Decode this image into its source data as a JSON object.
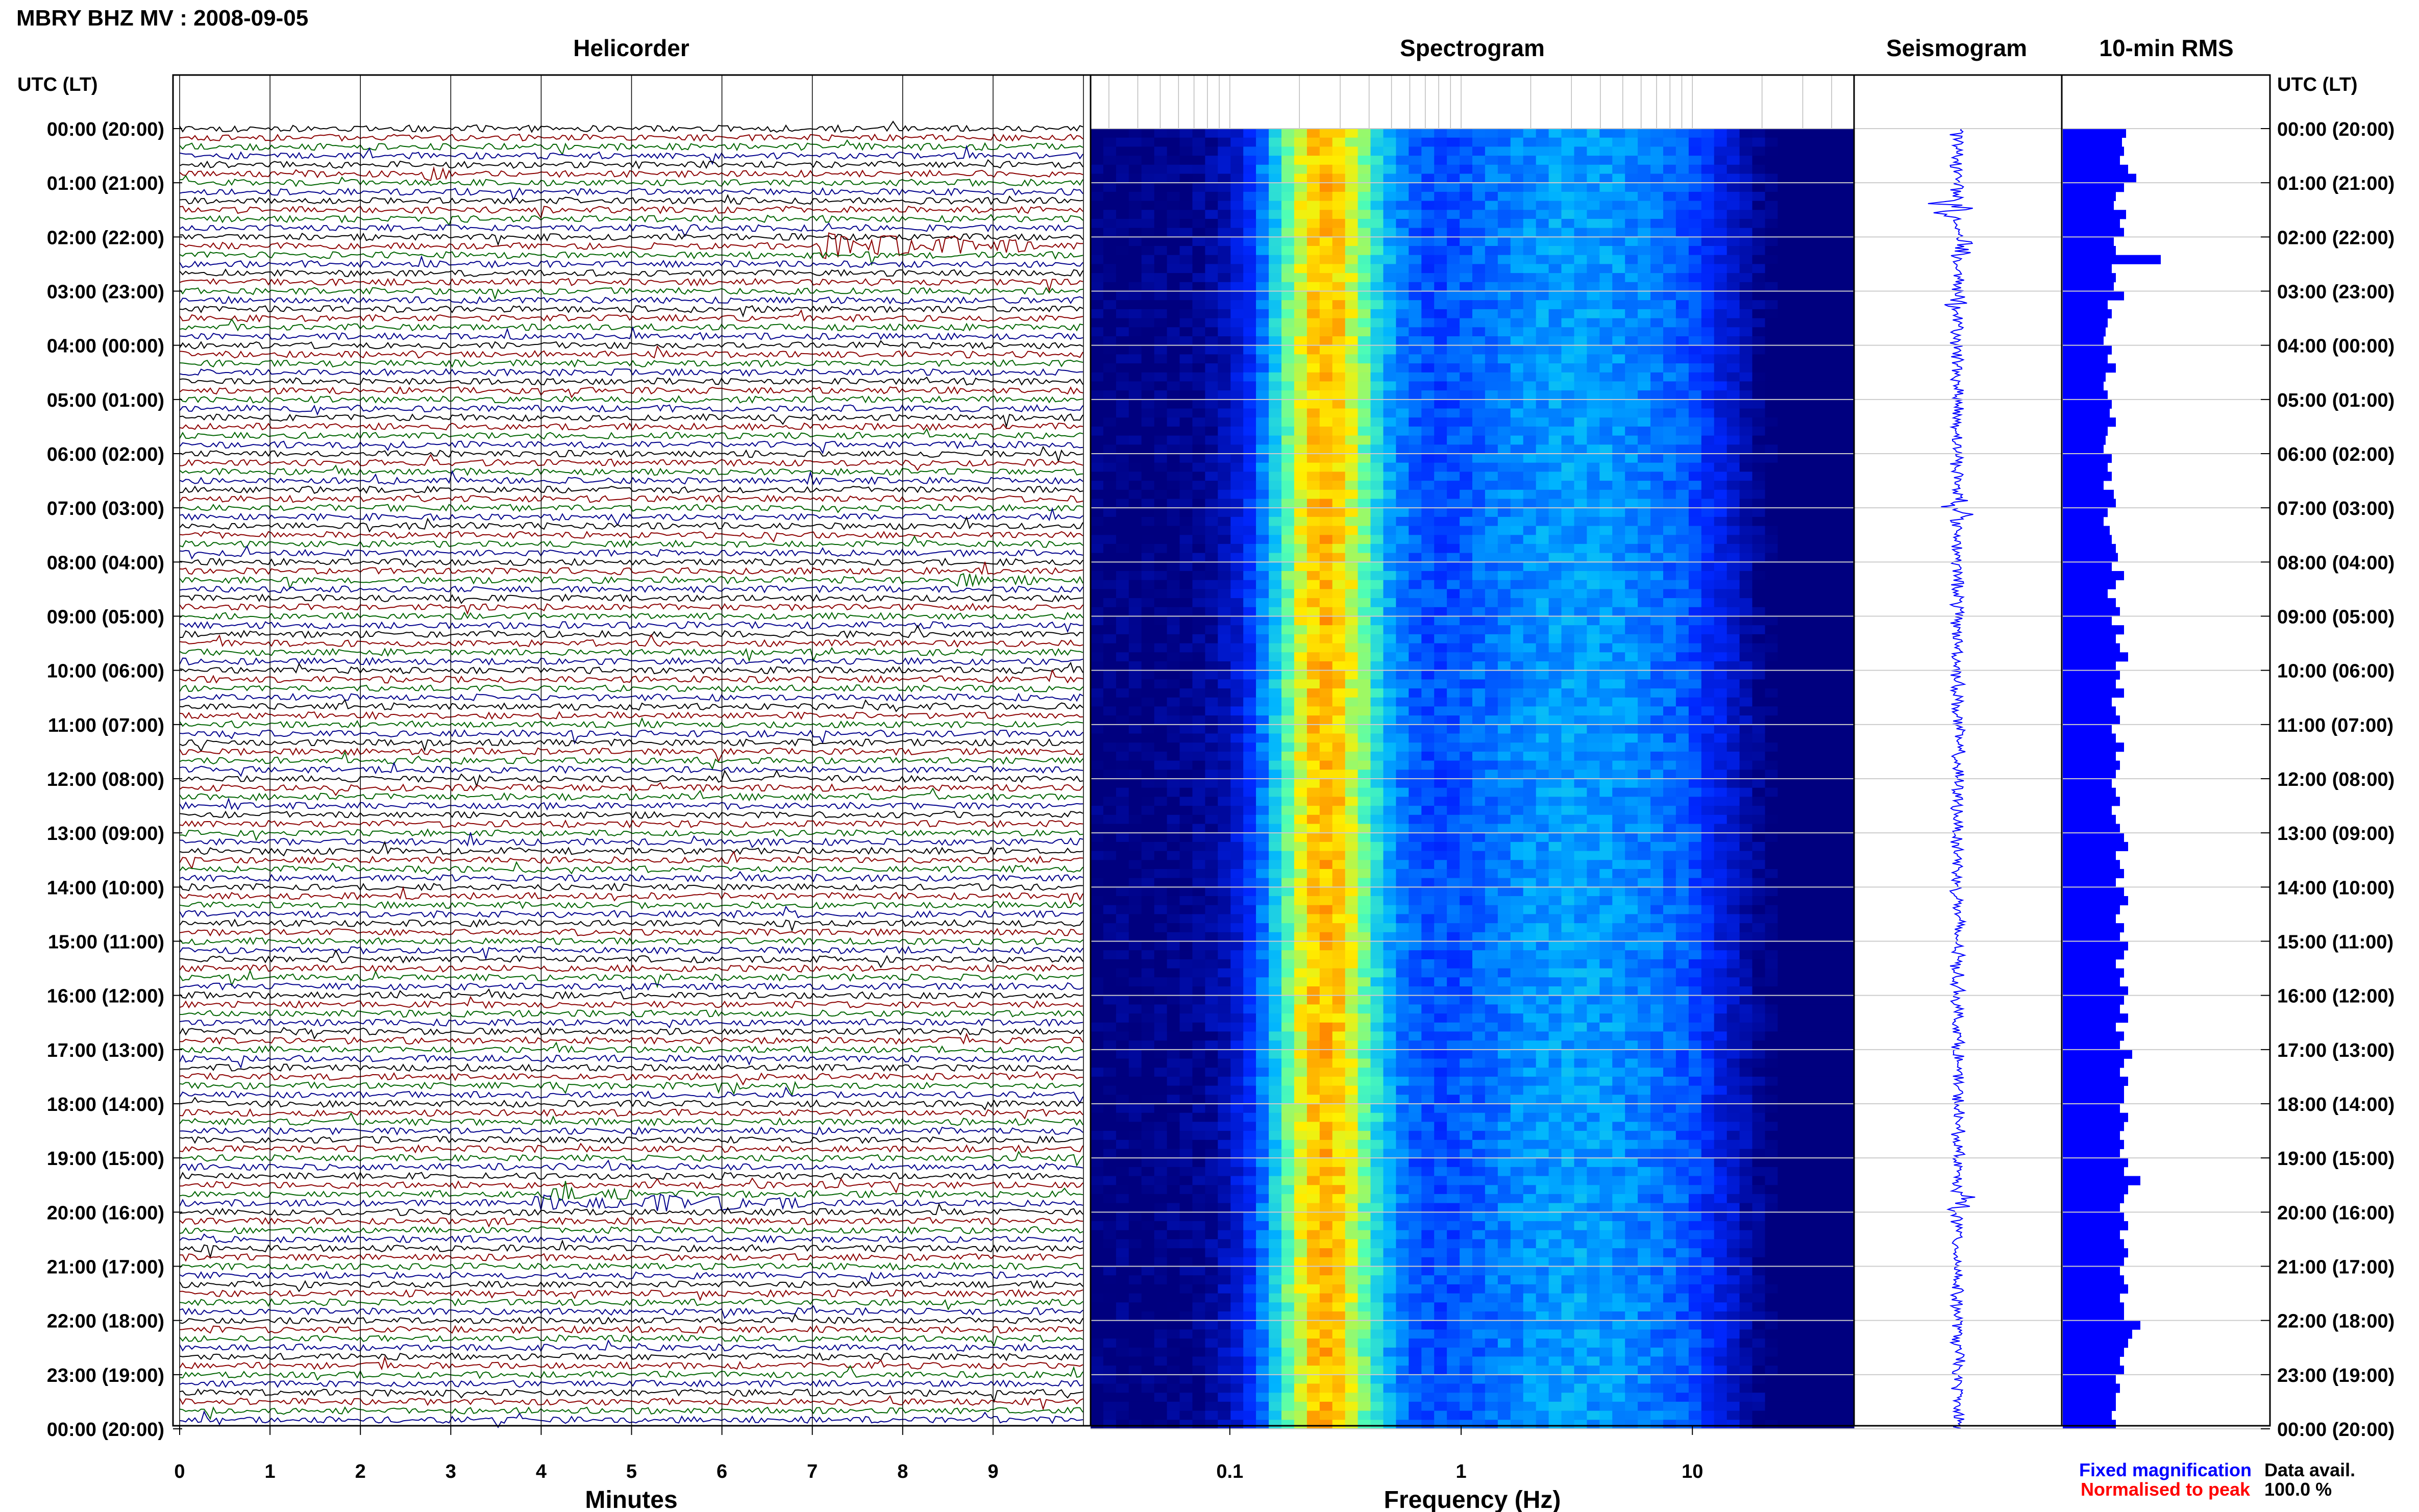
{
  "header": {
    "title": "MBRY BHZ MV : 2008-09-05"
  },
  "panels": {
    "helicorder": "Helicorder",
    "spectrogram": "Spectrogram",
    "seismogram": "Seismogram",
    "rms": "10-min RMS"
  },
  "axis": {
    "utc_label": "UTC (LT)",
    "minutes_label": "Minutes",
    "frequency_label": "Frequency (Hz)"
  },
  "footer": {
    "fixed_magnification": "Fixed magnification",
    "normalised": "Normalised to peak",
    "data_avail_label": "Data avail.",
    "data_avail_value": "100.0 %"
  },
  "colors": {
    "traces": [
      "#000000",
      "#8b0000",
      "#006400",
      "#00008b"
    ],
    "fixed_magnification": "#0000ff",
    "normalised": "#ff0000",
    "rms_bar": "#0000ff",
    "spectrogram_low": "#00007f",
    "spectrogram_high": "#ff2000"
  },
  "chart_data": {
    "type": "heatmap",
    "time_labels": [
      "00:00 (20:00)",
      "01:00 (21:00)",
      "02:00 (22:00)",
      "03:00 (23:00)",
      "04:00 (00:00)",
      "05:00 (01:00)",
      "06:00 (02:00)",
      "07:00 (03:00)",
      "08:00 (04:00)",
      "09:00 (05:00)",
      "10:00 (06:00)",
      "11:00 (07:00)",
      "12:00 (08:00)",
      "13:00 (09:00)",
      "14:00 (10:00)",
      "15:00 (11:00)",
      "16:00 (12:00)",
      "17:00 (13:00)",
      "18:00 (14:00)",
      "19:00 (15:00)",
      "20:00 (16:00)",
      "21:00 (17:00)",
      "22:00 (18:00)",
      "23:00 (19:00)",
      "00:00 (20:00)"
    ],
    "minute_ticks": [
      "0",
      "1",
      "2",
      "3",
      "4",
      "5",
      "6",
      "7",
      "8",
      "9"
    ],
    "frequency_ticks": [
      {
        "label": "0.1",
        "value": 0.1
      },
      {
        "label": "1",
        "value": 1
      },
      {
        "label": "10",
        "value": 10
      }
    ],
    "frequency_range": [
      0.025,
      50
    ],
    "frequency_scale": "log",
    "helicorder_lines": 144,
    "helicorder_events": [
      {
        "hour": 2.1,
        "minute_start": 7.1,
        "minute_end": 9.5,
        "amplitude": 1.2
      },
      {
        "hour": 19.75,
        "minute_start": 3.9,
        "minute_end": 5.0,
        "amplitude": 0.6
      },
      {
        "hour": 19.85,
        "minute_start": 5.0,
        "minute_end": 7.0,
        "amplitude": 0.8
      },
      {
        "hour": 8.4,
        "minute_start": 8.6,
        "minute_end": 9.5,
        "amplitude": 0.4
      },
      {
        "hour": 0.9,
        "minute_start": 2.7,
        "minute_end": 3.0,
        "amplitude": 0.6
      }
    ],
    "spectrogram_peak_frequency_hz": 0.25,
    "seismogram_bursts": [
      {
        "hour": 1.5,
        "amplitude": 1.0
      },
      {
        "hour": 2.2,
        "amplitude": 1.3
      },
      {
        "hour": 3.2,
        "amplitude": 0.8
      },
      {
        "hour": 7.0,
        "amplitude": 0.5
      },
      {
        "hour": 19.8,
        "amplitude": 0.9
      }
    ],
    "rms_values": [
      1.55,
      1.45,
      1.5,
      1.4,
      1.6,
      1.8,
      1.5,
      1.3,
      1.25,
      1.55,
      1.4,
      1.5,
      1.25,
      1.3,
      2.4,
      1.2,
      1.3,
      1.25,
      1.5,
      1.1,
      1.2,
      1.1,
      1.05,
      1.0,
      1.2,
      1.1,
      1.3,
      1.05,
      1.0,
      1.1,
      1.2,
      1.15,
      1.3,
      1.1,
      1.05,
      1.0,
      1.2,
      1.1,
      1.2,
      1.0,
      1.25,
      1.3,
      1.1,
      1.0,
      1.15,
      1.2,
      1.3,
      1.35,
      1.2,
      1.5,
      1.3,
      1.1,
      1.3,
      1.4,
      1.2,
      1.5,
      1.3,
      1.4,
      1.6,
      1.3,
      1.4,
      1.3,
      1.5,
      1.2,
      1.3,
      1.4,
      1.2,
      1.3,
      1.5,
      1.3,
      1.4,
      1.3,
      1.2,
      1.3,
      1.4,
      1.2,
      1.3,
      1.4,
      1.5,
      1.6,
      1.3,
      1.4,
      1.5,
      1.3,
      1.5,
      1.6,
      1.4,
      1.3,
      1.5,
      1.4,
      1.6,
      1.5,
      1.3,
      1.5,
      1.4,
      1.6,
      1.5,
      1.4,
      1.6,
      1.3,
      1.5,
      1.4,
      1.7,
      1.5,
      1.4,
      1.6,
      1.5,
      1.5,
      1.4,
      1.6,
      1.5,
      1.4,
      1.5,
      1.4,
      1.6,
      1.5,
      1.9,
      1.6,
      1.5,
      1.4,
      1.5,
      1.6,
      1.4,
      1.5,
      1.6,
      1.5,
      1.4,
      1.5,
      1.6,
      1.4,
      1.5,
      1.5,
      1.9,
      1.7,
      1.6,
      1.5,
      1.4,
      1.5,
      1.3,
      1.4,
      1.3,
      1.3,
      1.2,
      1.3
    ]
  }
}
